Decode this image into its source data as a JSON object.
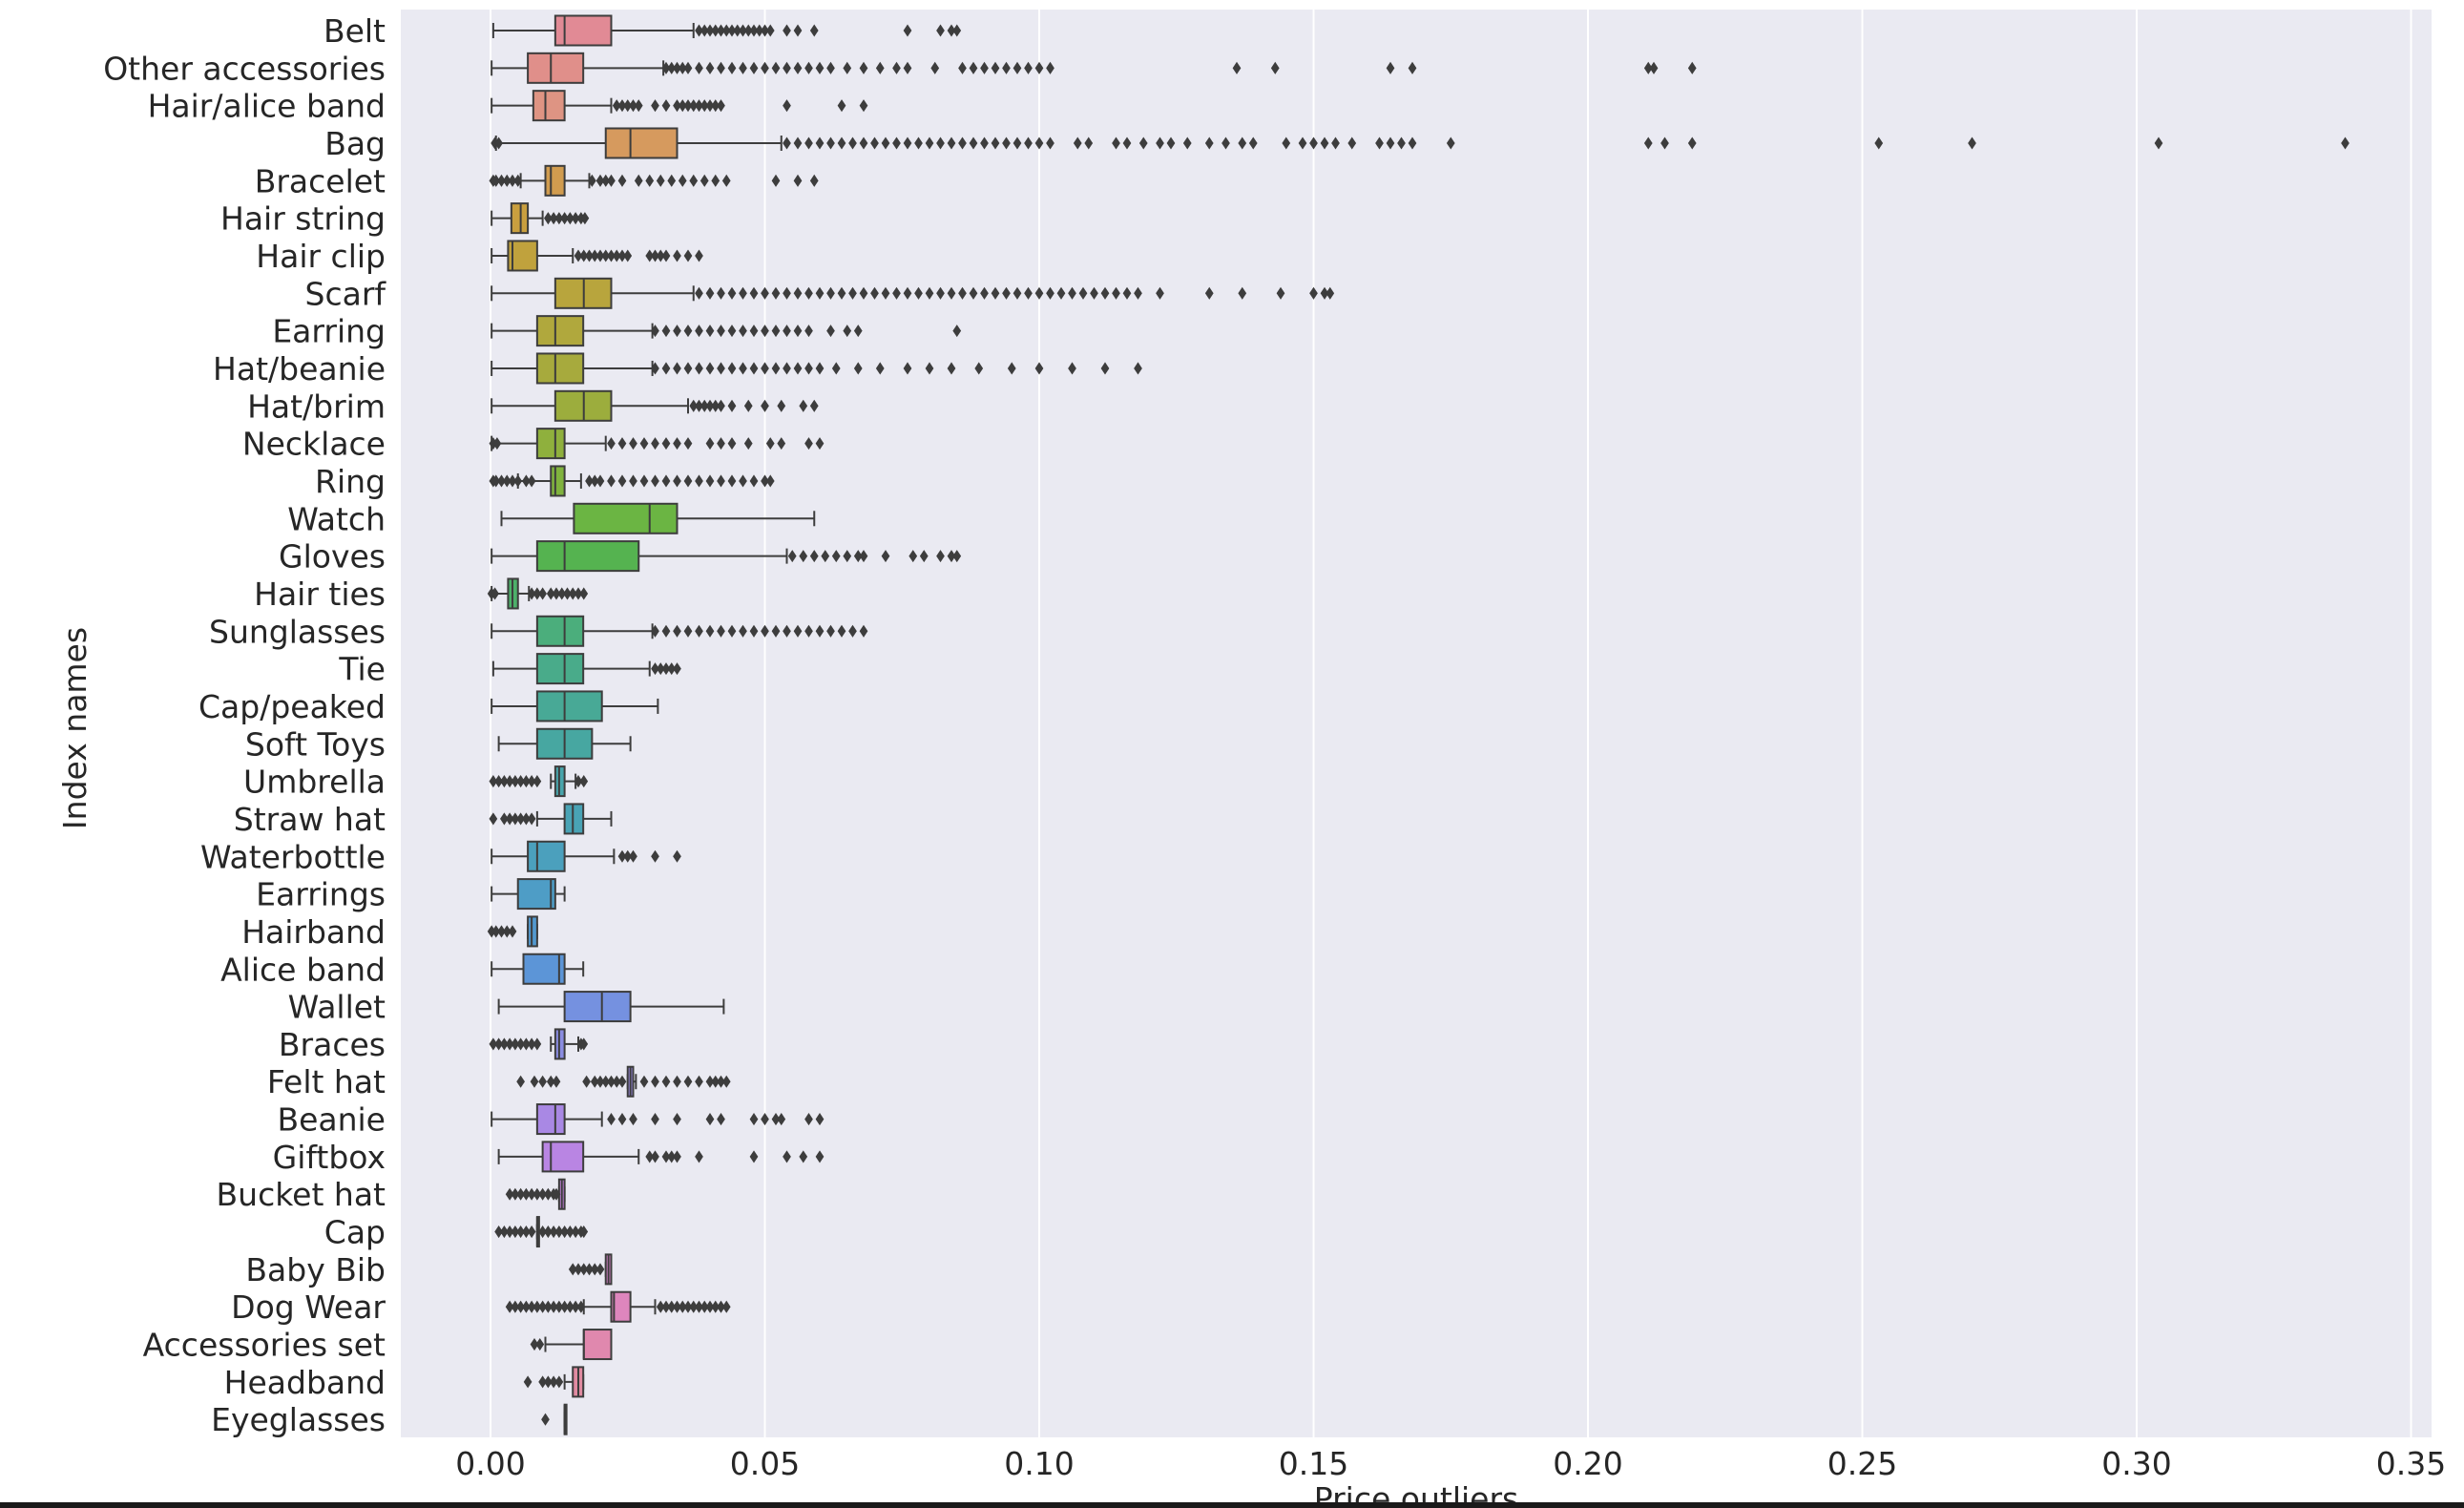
{
  "chart_data": {
    "type": "boxplot",
    "orientation": "horizontal",
    "xlabel": "Price outliers",
    "ylabel": "Index names",
    "xlim": [
      -0.017,
      0.355
    ],
    "xticks": [
      0.0,
      0.05,
      0.1,
      0.15,
      0.2,
      0.25,
      0.3,
      0.35
    ],
    "xtick_labels": [
      "0.00",
      "0.05",
      "0.10",
      "0.15",
      "0.20",
      "0.25",
      "0.30",
      "0.35"
    ],
    "grid": true,
    "background": "#eaeaf2",
    "median_color": "#3d3d3d",
    "categories": [
      {
        "name": "Belt",
        "color": "#e18a95",
        "wlo": 0.0005,
        "q1": 0.0118,
        "med": 0.0135,
        "q3": 0.022,
        "whi": 0.037,
        "outliers": [
          0.038,
          0.039,
          0.04,
          0.041,
          0.042,
          0.043,
          0.044,
          0.045,
          0.046,
          0.047,
          0.048,
          0.049,
          0.05,
          0.051,
          0.054,
          0.056,
          0.059,
          0.076,
          0.082,
          0.084,
          0.085
        ]
      },
      {
        "name": "Other accessories",
        "color": "#e08f8a",
        "wlo": 0.0002,
        "q1": 0.0068,
        "med": 0.011,
        "q3": 0.0169,
        "whi": 0.0315,
        "outliers": [
          0.032,
          0.033,
          0.034,
          0.035,
          0.036,
          0.038,
          0.04,
          0.042,
          0.044,
          0.046,
          0.048,
          0.05,
          0.052,
          0.054,
          0.056,
          0.058,
          0.06,
          0.062,
          0.065,
          0.068,
          0.071,
          0.074,
          0.076,
          0.081,
          0.086,
          0.088,
          0.09,
          0.092,
          0.094,
          0.096,
          0.098,
          0.1,
          0.102,
          0.136,
          0.143,
          0.164,
          0.168,
          0.211,
          0.212,
          0.219
        ]
      },
      {
        "name": "Hair/alice band",
        "color": "#de9483",
        "wlo": 0.0002,
        "q1": 0.0078,
        "med": 0.01,
        "q3": 0.0135,
        "whi": 0.022,
        "outliers": [
          0.023,
          0.024,
          0.025,
          0.026,
          0.027,
          0.03,
          0.032,
          0.034,
          0.035,
          0.036,
          0.037,
          0.038,
          0.039,
          0.04,
          0.041,
          0.042,
          0.054,
          0.064,
          0.068
        ]
      },
      {
        "name": "Bag",
        "color": "#d69a5e",
        "wlo": 0.001,
        "q1": 0.021,
        "med": 0.0255,
        "q3": 0.034,
        "whi": 0.053,
        "outliers": [
          0.0008,
          0.0015,
          0.054,
          0.056,
          0.058,
          0.06,
          0.062,
          0.064,
          0.066,
          0.068,
          0.07,
          0.072,
          0.074,
          0.076,
          0.078,
          0.08,
          0.082,
          0.084,
          0.086,
          0.088,
          0.09,
          0.092,
          0.094,
          0.096,
          0.098,
          0.1,
          0.102,
          0.107,
          0.109,
          0.114,
          0.116,
          0.119,
          0.122,
          0.124,
          0.127,
          0.131,
          0.134,
          0.137,
          0.139,
          0.145,
          0.148,
          0.15,
          0.152,
          0.154,
          0.157,
          0.162,
          0.164,
          0.166,
          0.168,
          0.175,
          0.211,
          0.214,
          0.219,
          0.253,
          0.27,
          0.304,
          0.338
        ]
      },
      {
        "name": "Bracelet",
        "color": "#d19c4f",
        "wlo": 0.0055,
        "q1": 0.01,
        "med": 0.011,
        "q3": 0.0135,
        "whi": 0.018,
        "outliers": [
          0.0005,
          0.001,
          0.002,
          0.003,
          0.004,
          0.005,
          0.0185,
          0.02,
          0.021,
          0.022,
          0.024,
          0.027,
          0.029,
          0.031,
          0.033,
          0.035,
          0.037,
          0.039,
          0.041,
          0.043,
          0.052,
          0.056,
          0.059
        ]
      },
      {
        "name": "Hair string",
        "color": "#c99f3f",
        "wlo": 0.0002,
        "q1": 0.0038,
        "med": 0.0055,
        "q3": 0.0068,
        "whi": 0.0095,
        "outliers": [
          0.0105,
          0.0115,
          0.0125,
          0.0135,
          0.0145,
          0.0155,
          0.0165,
          0.0172
        ]
      },
      {
        "name": "Hair clip",
        "color": "#c0a23d",
        "wlo": 0.0002,
        "q1": 0.0032,
        "med": 0.004,
        "q3": 0.0085,
        "whi": 0.015,
        "outliers": [
          0.016,
          0.017,
          0.018,
          0.019,
          0.02,
          0.021,
          0.022,
          0.023,
          0.024,
          0.025,
          0.029,
          0.03,
          0.031,
          0.032,
          0.034,
          0.036,
          0.038
        ]
      },
      {
        "name": "Scarf",
        "color": "#b8a53d",
        "wlo": 0.0002,
        "q1": 0.0118,
        "med": 0.017,
        "q3": 0.022,
        "whi": 0.037,
        "outliers": [
          0.038,
          0.04,
          0.042,
          0.044,
          0.046,
          0.048,
          0.05,
          0.052,
          0.054,
          0.056,
          0.058,
          0.06,
          0.062,
          0.064,
          0.066,
          0.068,
          0.07,
          0.072,
          0.074,
          0.076,
          0.078,
          0.08,
          0.082,
          0.084,
          0.086,
          0.088,
          0.09,
          0.092,
          0.094,
          0.096,
          0.098,
          0.1,
          0.102,
          0.104,
          0.106,
          0.108,
          0.11,
          0.112,
          0.114,
          0.116,
          0.118,
          0.122,
          0.131,
          0.137,
          0.144,
          0.15,
          0.152,
          0.153
        ]
      },
      {
        "name": "Earring",
        "color": "#b0a83d",
        "wlo": 0.0002,
        "q1": 0.0085,
        "med": 0.0118,
        "q3": 0.0169,
        "whi": 0.0295,
        "outliers": [
          0.03,
          0.032,
          0.034,
          0.036,
          0.038,
          0.04,
          0.042,
          0.044,
          0.046,
          0.048,
          0.05,
          0.052,
          0.054,
          0.056,
          0.058,
          0.062,
          0.065,
          0.067,
          0.085
        ]
      },
      {
        "name": "Hat/beanie",
        "color": "#a7aa3d",
        "wlo": 0.0002,
        "q1": 0.0085,
        "med": 0.0118,
        "q3": 0.0169,
        "whi": 0.0295,
        "outliers": [
          0.03,
          0.032,
          0.034,
          0.036,
          0.038,
          0.04,
          0.042,
          0.044,
          0.046,
          0.048,
          0.05,
          0.052,
          0.054,
          0.056,
          0.058,
          0.06,
          0.063,
          0.067,
          0.071,
          0.076,
          0.08,
          0.084,
          0.089,
          0.095,
          0.1,
          0.106,
          0.112,
          0.118
        ]
      },
      {
        "name": "Hat/brim",
        "color": "#9cad3d",
        "wlo": 0.0002,
        "q1": 0.0118,
        "med": 0.017,
        "q3": 0.022,
        "whi": 0.036,
        "outliers": [
          0.037,
          0.038,
          0.039,
          0.04,
          0.041,
          0.042,
          0.044,
          0.047,
          0.05,
          0.053,
          0.057,
          0.059
        ]
      },
      {
        "name": "Necklace",
        "color": "#8fb03d",
        "wlo": 0.0002,
        "q1": 0.0085,
        "med": 0.0118,
        "q3": 0.0135,
        "whi": 0.021,
        "outliers": [
          0.0005,
          0.0012,
          0.022,
          0.024,
          0.026,
          0.028,
          0.03,
          0.032,
          0.034,
          0.036,
          0.04,
          0.042,
          0.044,
          0.047,
          0.051,
          0.053,
          0.058,
          0.06
        ]
      },
      {
        "name": "Ring",
        "color": "#80b33e",
        "wlo": 0.005,
        "q1": 0.011,
        "med": 0.0118,
        "q3": 0.0135,
        "whi": 0.0165,
        "outliers": [
          0.0005,
          0.001,
          0.002,
          0.003,
          0.004,
          0.005,
          0.0065,
          0.0075,
          0.018,
          0.019,
          0.02,
          0.022,
          0.024,
          0.026,
          0.028,
          0.03,
          0.032,
          0.034,
          0.036,
          0.038,
          0.04,
          0.042,
          0.044,
          0.046,
          0.048,
          0.05,
          0.051
        ]
      },
      {
        "name": "Watch",
        "color": "#6bb543",
        "wlo": 0.002,
        "q1": 0.0152,
        "med": 0.029,
        "q3": 0.034,
        "whi": 0.059,
        "outliers": []
      },
      {
        "name": "Gloves",
        "color": "#55b350",
        "wlo": 0.0002,
        "q1": 0.0085,
        "med": 0.0135,
        "q3": 0.027,
        "whi": 0.054,
        "outliers": [
          0.055,
          0.057,
          0.059,
          0.061,
          0.063,
          0.065,
          0.067,
          0.068,
          0.072,
          0.077,
          0.079,
          0.082,
          0.084,
          0.085
        ]
      },
      {
        "name": "Hair ties",
        "color": "#4db06a",
        "wlo": 0.0002,
        "q1": 0.0032,
        "med": 0.004,
        "q3": 0.005,
        "whi": 0.007,
        "outliers": [
          0.0002,
          0.0008,
          0.0075,
          0.0085,
          0.0095,
          0.011,
          0.012,
          0.013,
          0.014,
          0.015,
          0.016,
          0.017
        ]
      },
      {
        "name": "Sunglasses",
        "color": "#4bae7c",
        "wlo": 0.0002,
        "q1": 0.0085,
        "med": 0.0135,
        "q3": 0.0169,
        "whi": 0.0295,
        "outliers": [
          0.03,
          0.032,
          0.034,
          0.036,
          0.038,
          0.04,
          0.042,
          0.044,
          0.046,
          0.048,
          0.05,
          0.052,
          0.054,
          0.056,
          0.058,
          0.06,
          0.062,
          0.064,
          0.066,
          0.068
        ]
      },
      {
        "name": "Tie",
        "color": "#49ab8a",
        "wlo": 0.0005,
        "q1": 0.0085,
        "med": 0.0135,
        "q3": 0.0169,
        "whi": 0.029,
        "outliers": [
          0.03,
          0.031,
          0.032,
          0.033,
          0.034
        ]
      },
      {
        "name": "Cap/peaked",
        "color": "#48a996",
        "wlo": 0.0002,
        "q1": 0.0085,
        "med": 0.0135,
        "q3": 0.0203,
        "whi": 0.0305,
        "outliers": []
      },
      {
        "name": "Soft Toys",
        "color": "#47a7a1",
        "wlo": 0.0015,
        "q1": 0.0085,
        "med": 0.0135,
        "q3": 0.0185,
        "whi": 0.0255,
        "outliers": []
      },
      {
        "name": "Umbrella",
        "color": "#48a5ac",
        "wlo": 0.011,
        "q1": 0.0118,
        "med": 0.0125,
        "q3": 0.0135,
        "whi": 0.0155,
        "outliers": [
          0.0005,
          0.0015,
          0.0025,
          0.0035,
          0.0045,
          0.0055,
          0.0065,
          0.0075,
          0.0085,
          0.016,
          0.017
        ]
      },
      {
        "name": "Straw hat",
        "color": "#49a3b5",
        "wlo": 0.0085,
        "q1": 0.0135,
        "med": 0.015,
        "q3": 0.0169,
        "whi": 0.022,
        "outliers": [
          0.0005,
          0.0025,
          0.0035,
          0.0045,
          0.0055,
          0.0065,
          0.0075
        ]
      },
      {
        "name": "Waterbottle",
        "color": "#4ba0bd",
        "wlo": 0.0002,
        "q1": 0.0068,
        "med": 0.0085,
        "q3": 0.0135,
        "whi": 0.0225,
        "outliers": [
          0.024,
          0.025,
          0.026,
          0.03,
          0.034
        ]
      },
      {
        "name": "Earrings",
        "color": "#4e9dc6",
        "wlo": 0.0002,
        "q1": 0.005,
        "med": 0.011,
        "q3": 0.0118,
        "whi": 0.0135,
        "outliers": []
      },
      {
        "name": "Hairband",
        "color": "#5399cf",
        "wlo": 0.0068,
        "q1": 0.0068,
        "med": 0.0075,
        "q3": 0.0085,
        "whi": 0.0085,
        "outliers": [
          0.0002,
          0.001,
          0.002,
          0.003,
          0.004
        ]
      },
      {
        "name": "Alice band",
        "color": "#5c95d7",
        "wlo": 0.0002,
        "q1": 0.006,
        "med": 0.0125,
        "q3": 0.0135,
        "whi": 0.0169,
        "outliers": []
      },
      {
        "name": "Wallet",
        "color": "#7591e0",
        "wlo": 0.0015,
        "q1": 0.0135,
        "med": 0.0203,
        "q3": 0.0255,
        "whi": 0.0425,
        "outliers": []
      },
      {
        "name": "Braces",
        "color": "#8b8de2",
        "wlo": 0.011,
        "q1": 0.0118,
        "med": 0.0125,
        "q3": 0.0135,
        "whi": 0.016,
        "outliers": [
          0.0005,
          0.0015,
          0.0025,
          0.0035,
          0.0045,
          0.0055,
          0.0065,
          0.0075,
          0.0085,
          0.0165,
          0.017
        ]
      },
      {
        "name": "Felt hat",
        "color": "#9b8ae3",
        "wlo": 0.025,
        "q1": 0.025,
        "med": 0.0255,
        "q3": 0.026,
        "whi": 0.0265,
        "outliers": [
          0.0055,
          0.008,
          0.0095,
          0.011,
          0.012,
          0.0175,
          0.019,
          0.02,
          0.021,
          0.022,
          0.023,
          0.024,
          0.028,
          0.03,
          0.032,
          0.034,
          0.036,
          0.038,
          0.04,
          0.041,
          0.042,
          0.043
        ]
      },
      {
        "name": "Beanie",
        "color": "#a988e4",
        "wlo": 0.0002,
        "q1": 0.0085,
        "med": 0.0118,
        "q3": 0.0135,
        "whi": 0.0203,
        "outliers": [
          0.022,
          0.024,
          0.026,
          0.03,
          0.034,
          0.04,
          0.042,
          0.048,
          0.05,
          0.052,
          0.053,
          0.058,
          0.06
        ]
      },
      {
        "name": "Giftbox",
        "color": "#b985e3",
        "wlo": 0.0015,
        "q1": 0.0095,
        "med": 0.011,
        "q3": 0.0169,
        "whi": 0.027,
        "outliers": [
          0.029,
          0.03,
          0.032,
          0.033,
          0.034,
          0.038,
          0.048,
          0.054,
          0.057,
          0.06
        ]
      },
      {
        "name": "Bucket hat",
        "color": "#c683df",
        "wlo": 0.0125,
        "q1": 0.0125,
        "med": 0.013,
        "q3": 0.0135,
        "whi": 0.0135,
        "outliers": [
          0.0035,
          0.0045,
          0.0055,
          0.0065,
          0.0075,
          0.0085,
          0.0095,
          0.0105,
          0.0115,
          0.012
        ]
      },
      {
        "name": "Cap",
        "color": "#d181d8",
        "wlo": 0.0085,
        "q1": 0.0085,
        "med": 0.0085,
        "q3": 0.0085,
        "whi": 0.0085,
        "outliers": [
          0.0015,
          0.0025,
          0.0035,
          0.0045,
          0.0055,
          0.0065,
          0.0075,
          0.0095,
          0.0105,
          0.0115,
          0.0125,
          0.0135,
          0.0145,
          0.0155,
          0.0165,
          0.017
        ]
      },
      {
        "name": "Baby Bib",
        "color": "#d983cb",
        "wlo": 0.021,
        "q1": 0.021,
        "med": 0.0215,
        "q3": 0.022,
        "whi": 0.022,
        "outliers": [
          0.015,
          0.016,
          0.017,
          0.018,
          0.019,
          0.02
        ]
      },
      {
        "name": "Dog Wear",
        "color": "#de86bd",
        "wlo": 0.017,
        "q1": 0.022,
        "med": 0.0225,
        "q3": 0.0255,
        "whi": 0.03,
        "outliers": [
          0.0035,
          0.0045,
          0.0055,
          0.0065,
          0.0075,
          0.0085,
          0.0095,
          0.0105,
          0.0115,
          0.0125,
          0.0135,
          0.0145,
          0.0155,
          0.0165,
          0.031,
          0.032,
          0.033,
          0.034,
          0.035,
          0.036,
          0.037,
          0.038,
          0.039,
          0.04,
          0.041,
          0.042,
          0.043
        ]
      },
      {
        "name": "Accessories set",
        "color": "#e088ae",
        "wlo": 0.01,
        "q1": 0.017,
        "med": 0.017,
        "q3": 0.022,
        "whi": 0.022,
        "outliers": [
          0.008,
          0.009
        ]
      },
      {
        "name": "Headband",
        "color": "#e18ba1",
        "wlo": 0.0135,
        "q1": 0.015,
        "med": 0.016,
        "q3": 0.0169,
        "whi": 0.0169,
        "outliers": [
          0.0068,
          0.0095,
          0.0105,
          0.0115,
          0.0125
        ]
      },
      {
        "name": "Eyeglasses",
        "color": "#e28d95",
        "wlo": 0.0135,
        "q1": 0.0135,
        "med": 0.0135,
        "q3": 0.0135,
        "whi": 0.0135,
        "outliers": [
          0.01
        ]
      }
    ]
  }
}
